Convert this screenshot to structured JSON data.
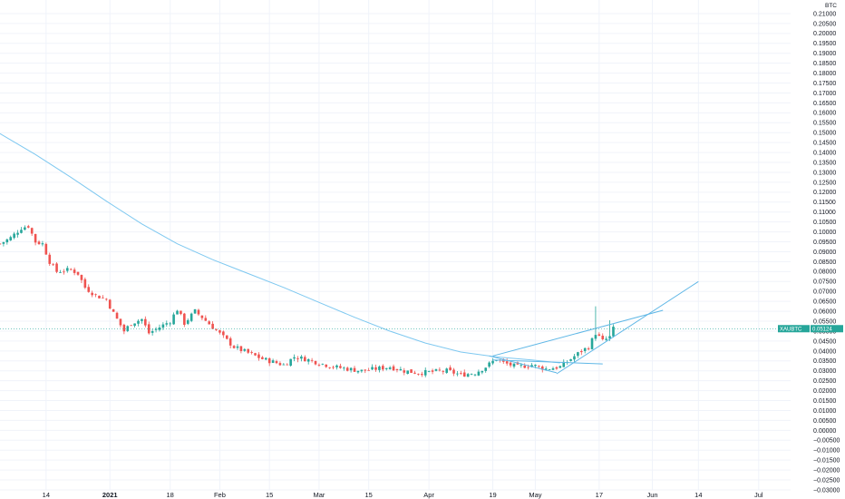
{
  "chart_data": {
    "type": "candlestick",
    "symbol": "XAUBTC",
    "unit_label": "BTC",
    "last_price": "0.05124",
    "colors": {
      "up": "#26a69a",
      "down": "#ef5350",
      "ma": "#7ec8f0",
      "trendline": "#5fb7e6",
      "price_tag": "#26a69a",
      "grid": "#f0f3fa",
      "axis_text": "#131722"
    },
    "y_axis": {
      "min": -0.03,
      "max": 0.215,
      "step": 0.005,
      "ticks": [
        "0.21000",
        "0.20500",
        "0.20000",
        "0.19500",
        "0.19000",
        "0.18500",
        "0.18000",
        "0.17500",
        "0.17000",
        "0.16500",
        "0.16000",
        "0.15500",
        "0.15000",
        "0.14500",
        "0.14000",
        "0.13500",
        "0.13000",
        "0.12500",
        "0.12000",
        "0.11500",
        "0.11000",
        "0.10500",
        "0.10000",
        "0.09500",
        "0.09000",
        "0.08500",
        "0.08000",
        "0.07500",
        "0.07000",
        "0.06500",
        "0.06000",
        "0.05500",
        "0.05000",
        "0.04500",
        "0.04000",
        "0.03500",
        "0.03000",
        "0.02500",
        "0.02000",
        "0.01500",
        "0.01000",
        "0.00500",
        "0.00000",
        "−0.00500",
        "−0.01000",
        "−0.01500",
        "−0.02000",
        "−0.02500",
        "−0.03000"
      ]
    },
    "x_axis": {
      "ticks": [
        {
          "label": "14",
          "day": 13,
          "bold": false
        },
        {
          "label": "2021",
          "day": 31,
          "bold": true
        },
        {
          "label": "18",
          "day": 48,
          "bold": false
        },
        {
          "label": "Feb",
          "day": 62,
          "bold": false
        },
        {
          "label": "15",
          "day": 76,
          "bold": false
        },
        {
          "label": "Mar",
          "day": 90,
          "bold": false
        },
        {
          "label": "15",
          "day": 104,
          "bold": false
        },
        {
          "label": "Apr",
          "day": 121,
          "bold": false
        },
        {
          "label": "19",
          "day": 139,
          "bold": false
        },
        {
          "label": "May",
          "day": 151,
          "bold": false
        },
        {
          "label": "17",
          "day": 169,
          "bold": false
        },
        {
          "label": "Jun",
          "day": 184,
          "bold": false
        },
        {
          "label": "14",
          "day": 197,
          "bold": false
        },
        {
          "label": "Jul",
          "day": 214,
          "bold": false
        }
      ],
      "day_min": 0,
      "day_max": 223
    },
    "moving_average": [
      {
        "day": 0,
        "value": 0.1495
      },
      {
        "day": 10,
        "value": 0.139
      },
      {
        "day": 20,
        "value": 0.1275
      },
      {
        "day": 30,
        "value": 0.1155
      },
      {
        "day": 40,
        "value": 0.104
      },
      {
        "day": 50,
        "value": 0.094
      },
      {
        "day": 60,
        "value": 0.086
      },
      {
        "day": 70,
        "value": 0.079
      },
      {
        "day": 80,
        "value": 0.072
      },
      {
        "day": 90,
        "value": 0.0645
      },
      {
        "day": 100,
        "value": 0.057
      },
      {
        "day": 110,
        "value": 0.05
      },
      {
        "day": 120,
        "value": 0.044
      },
      {
        "day": 130,
        "value": 0.0395
      },
      {
        "day": 140,
        "value": 0.037
      },
      {
        "day": 150,
        "value": 0.0355
      },
      {
        "day": 158,
        "value": 0.034
      }
    ],
    "trendlines": [
      {
        "from_day": 139,
        "from_value": 0.0375,
        "to_day": 187,
        "to_value": 0.0605
      },
      {
        "from_day": 157,
        "from_value": 0.0285,
        "to_day": 197,
        "to_value": 0.075
      },
      {
        "from_day": 138,
        "from_value": 0.0375,
        "to_day": 157,
        "to_value": 0.029
      },
      {
        "from_day": 139,
        "from_value": 0.0355,
        "to_day": 170,
        "to_value": 0.0335
      }
    ],
    "price_path": [
      {
        "day": 0,
        "value": 0.094
      },
      {
        "day": 3,
        "value": 0.097
      },
      {
        "day": 6,
        "value": 0.102
      },
      {
        "day": 8,
        "value": 0.103
      },
      {
        "day": 10,
        "value": 0.095
      },
      {
        "day": 12,
        "value": 0.094
      },
      {
        "day": 14,
        "value": 0.085
      },
      {
        "day": 16,
        "value": 0.08
      },
      {
        "day": 20,
        "value": 0.081
      },
      {
        "day": 22,
        "value": 0.079
      },
      {
        "day": 24,
        "value": 0.072
      },
      {
        "day": 27,
        "value": 0.068
      },
      {
        "day": 30,
        "value": 0.066
      },
      {
        "day": 32,
        "value": 0.059
      },
      {
        "day": 35,
        "value": 0.05
      },
      {
        "day": 37,
        "value": 0.054
      },
      {
        "day": 40,
        "value": 0.056
      },
      {
        "day": 42,
        "value": 0.049
      },
      {
        "day": 45,
        "value": 0.052
      },
      {
        "day": 48,
        "value": 0.055
      },
      {
        "day": 50,
        "value": 0.061
      },
      {
        "day": 52,
        "value": 0.054
      },
      {
        "day": 55,
        "value": 0.06
      },
      {
        "day": 57,
        "value": 0.057
      },
      {
        "day": 60,
        "value": 0.052
      },
      {
        "day": 63,
        "value": 0.047
      },
      {
        "day": 66,
        "value": 0.042
      },
      {
        "day": 70,
        "value": 0.039
      },
      {
        "day": 74,
        "value": 0.036
      },
      {
        "day": 78,
        "value": 0.034
      },
      {
        "day": 80,
        "value": 0.033
      },
      {
        "day": 83,
        "value": 0.037
      },
      {
        "day": 86,
        "value": 0.036
      },
      {
        "day": 90,
        "value": 0.034
      },
      {
        "day": 94,
        "value": 0.032
      },
      {
        "day": 98,
        "value": 0.031
      },
      {
        "day": 102,
        "value": 0.03
      },
      {
        "day": 106,
        "value": 0.031
      },
      {
        "day": 110,
        "value": 0.032
      },
      {
        "day": 114,
        "value": 0.03
      },
      {
        "day": 118,
        "value": 0.029
      },
      {
        "day": 122,
        "value": 0.0295
      },
      {
        "day": 126,
        "value": 0.03
      },
      {
        "day": 130,
        "value": 0.028
      },
      {
        "day": 134,
        "value": 0.029
      },
      {
        "day": 137,
        "value": 0.032
      },
      {
        "day": 140,
        "value": 0.036
      },
      {
        "day": 142,
        "value": 0.034
      },
      {
        "day": 146,
        "value": 0.032
      },
      {
        "day": 150,
        "value": 0.033
      },
      {
        "day": 154,
        "value": 0.031
      },
      {
        "day": 158,
        "value": 0.032
      },
      {
        "day": 161,
        "value": 0.036
      },
      {
        "day": 164,
        "value": 0.04
      },
      {
        "day": 166,
        "value": 0.042
      },
      {
        "day": 168,
        "value": 0.049
      },
      {
        "day": 170,
        "value": 0.045
      },
      {
        "day": 172,
        "value": 0.047
      },
      {
        "day": 173,
        "value": 0.0512
      }
    ],
    "spikes": [
      {
        "day": 168,
        "high": 0.0625
      },
      {
        "day": 172,
        "high": 0.0555
      }
    ]
  }
}
